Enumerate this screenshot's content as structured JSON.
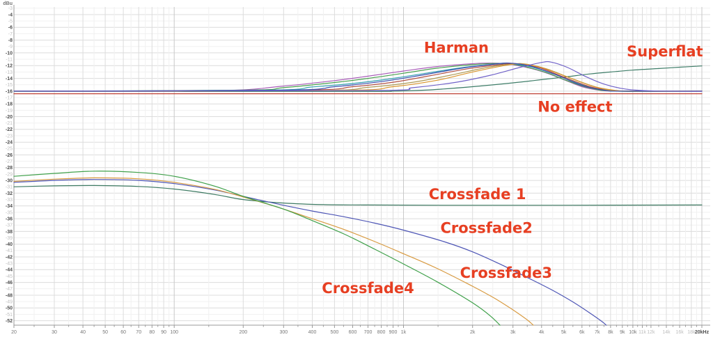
{
  "chart_data": {
    "type": "line",
    "title": "",
    "x_axis": {
      "scale": "log",
      "unit": "Hz",
      "min": 20,
      "max": 20000,
      "tick_labels": [
        {
          "f": 20,
          "text": "20"
        },
        {
          "f": 30,
          "text": "30"
        },
        {
          "f": 40,
          "text": "40"
        },
        {
          "f": 50,
          "text": "50"
        },
        {
          "f": 60,
          "text": "60"
        },
        {
          "f": 70,
          "text": "70"
        },
        {
          "f": 80,
          "text": "80"
        },
        {
          "f": 90,
          "text": "90"
        },
        {
          "f": 100,
          "text": "100"
        },
        {
          "f": 200,
          "text": "200"
        },
        {
          "f": 300,
          "text": "300"
        },
        {
          "f": 400,
          "text": "400"
        },
        {
          "f": 500,
          "text": "500"
        },
        {
          "f": 600,
          "text": "600"
        },
        {
          "f": 700,
          "text": "700"
        },
        {
          "f": 800,
          "text": "800"
        },
        {
          "f": 900,
          "text": "900"
        },
        {
          "f": 1000,
          "text": "1k"
        },
        {
          "f": 2000,
          "text": "2k"
        },
        {
          "f": 3000,
          "text": "3k"
        },
        {
          "f": 4000,
          "text": "4k"
        },
        {
          "f": 5000,
          "text": "5k"
        },
        {
          "f": 6000,
          "text": "6k"
        },
        {
          "f": 7000,
          "text": "7k"
        },
        {
          "f": 8000,
          "text": "8k"
        },
        {
          "f": 9000,
          "text": "9k"
        },
        {
          "f": 10000,
          "text": "10k"
        },
        {
          "f": 11000,
          "text": "11k",
          "muted": true
        },
        {
          "f": 12000,
          "text": "12k",
          "muted": true
        },
        {
          "f": 14000,
          "text": "14k",
          "muted": true
        },
        {
          "f": 16000,
          "text": "16k",
          "muted": true
        },
        {
          "f": 18000,
          "text": "18k",
          "muted": true
        },
        {
          "f": 20000,
          "text": "20kHz",
          "emph": true
        }
      ],
      "grid_emphasis": [
        100,
        1000,
        10000,
        20000
      ]
    },
    "y_axis": {
      "unit_label": "dBu",
      "tick_from": -3,
      "tick_to": -52,
      "tick_step": 1
    },
    "series": [
      {
        "name": "superflat",
        "group": "Superflat",
        "color": "#3e7d68",
        "points": [
          [
            20,
            -16.05
          ],
          [
            600,
            -16.05
          ],
          [
            900,
            -16.0
          ],
          [
            1300,
            -15.8
          ],
          [
            2000,
            -15.3
          ],
          [
            3000,
            -14.7
          ],
          [
            4000,
            -14.2
          ],
          [
            5000,
            -13.8
          ],
          [
            6500,
            -13.3
          ],
          [
            8000,
            -13.0
          ],
          [
            10000,
            -12.7
          ],
          [
            13000,
            -12.45
          ],
          [
            16000,
            -12.25
          ],
          [
            20000,
            -12.05
          ]
        ]
      },
      {
        "name": "harman-violet",
        "group": "Harman",
        "color": "#a85cb8",
        "points": [
          [
            20,
            -16
          ],
          [
            150,
            -15.95
          ],
          [
            300,
            -15.2
          ],
          [
            500,
            -14.35
          ],
          [
            700,
            -13.65
          ],
          [
            1000,
            -12.85
          ],
          [
            1400,
            -12.15
          ],
          [
            2000,
            -11.7
          ],
          [
            2400,
            -11.6
          ],
          [
            3000,
            -11.85
          ],
          [
            4000,
            -12.9
          ],
          [
            5000,
            -14.2
          ],
          [
            6000,
            -15.3
          ],
          [
            7000,
            -15.8
          ],
          [
            8500,
            -16
          ],
          [
            20000,
            -16
          ]
        ]
      },
      {
        "name": "harman-green",
        "group": "Harman",
        "color": "#49a04f",
        "points": [
          [
            20,
            -16
          ],
          [
            200,
            -15.85
          ],
          [
            300,
            -15.45
          ],
          [
            500,
            -14.65
          ],
          [
            700,
            -14.0
          ],
          [
            1000,
            -13.2
          ],
          [
            1400,
            -12.4
          ],
          [
            2000,
            -11.85
          ],
          [
            2600,
            -11.65
          ],
          [
            3200,
            -11.95
          ],
          [
            4200,
            -13.1
          ],
          [
            5200,
            -14.4
          ],
          [
            6500,
            -15.5
          ],
          [
            8500,
            -16
          ],
          [
            20000,
            -16
          ]
        ]
      },
      {
        "name": "harman-teal",
        "group": "Harman",
        "color": "#35a0b2",
        "points": [
          [
            20,
            -16
          ],
          [
            250,
            -15.85
          ],
          [
            400,
            -15.35
          ],
          [
            600,
            -14.8
          ],
          [
            900,
            -14.0
          ],
          [
            1300,
            -13.1
          ],
          [
            1900,
            -12.2
          ],
          [
            2700,
            -11.7
          ],
          [
            3500,
            -12.1
          ],
          [
            4500,
            -13.3
          ],
          [
            6000,
            -15.0
          ],
          [
            7500,
            -15.8
          ],
          [
            9000,
            -16
          ],
          [
            20000,
            -16
          ]
        ]
      },
      {
        "name": "harman-red",
        "group": "Harman",
        "color": "#b05045",
        "points": [
          [
            20,
            -16
          ],
          [
            350,
            -15.85
          ],
          [
            600,
            -15.3
          ],
          [
            900,
            -14.6
          ],
          [
            1300,
            -13.6
          ],
          [
            1900,
            -12.5
          ],
          [
            2700,
            -11.8
          ],
          [
            3100,
            -11.7
          ],
          [
            3900,
            -12.3
          ],
          [
            5000,
            -13.8
          ],
          [
            6500,
            -15.3
          ],
          [
            8000,
            -15.9
          ],
          [
            9500,
            -16
          ],
          [
            20000,
            -16
          ]
        ]
      },
      {
        "name": "harman-olive",
        "group": "Harman",
        "color": "#ad9a55",
        "points": [
          [
            20,
            -16
          ],
          [
            400,
            -15.9
          ],
          [
            700,
            -15.4
          ],
          [
            1100,
            -14.6
          ],
          [
            1600,
            -13.5
          ],
          [
            2300,
            -12.3
          ],
          [
            3000,
            -11.75
          ],
          [
            3400,
            -11.75
          ],
          [
            4200,
            -12.5
          ],
          [
            5400,
            -14.0
          ],
          [
            7000,
            -15.4
          ],
          [
            9000,
            -16
          ],
          [
            20000,
            -16
          ]
        ]
      },
      {
        "name": "harman-orange",
        "group": "Harman",
        "color": "#d9952f",
        "points": [
          [
            20,
            -16
          ],
          [
            500,
            -15.9
          ],
          [
            900,
            -15.3
          ],
          [
            1400,
            -14.3
          ],
          [
            2000,
            -13.0
          ],
          [
            2800,
            -11.95
          ],
          [
            3300,
            -11.75
          ],
          [
            4000,
            -12.3
          ],
          [
            5200,
            -13.8
          ],
          [
            6800,
            -15.3
          ],
          [
            8500,
            -15.9
          ],
          [
            10000,
            -16
          ],
          [
            20000,
            -16
          ]
        ]
      },
      {
        "name": "harman-blue",
        "group": "Harman",
        "color": "#3c4fb0",
        "points": [
          [
            20,
            -16
          ],
          [
            300,
            -15.85
          ],
          [
            500,
            -15.3
          ],
          [
            800,
            -14.5
          ],
          [
            1200,
            -13.5
          ],
          [
            1800,
            -12.4
          ],
          [
            2500,
            -11.75
          ],
          [
            2900,
            -11.6
          ],
          [
            3600,
            -12.1
          ],
          [
            4600,
            -13.4
          ],
          [
            6000,
            -15.1
          ],
          [
            7500,
            -15.85
          ],
          [
            9000,
            -16
          ],
          [
            20000,
            -16
          ]
        ]
      },
      {
        "name": "harman-slate",
        "group": "Harman",
        "color": "#7062c8",
        "points": [
          [
            20,
            -16
          ],
          [
            700,
            -15.9
          ],
          [
            1100,
            -15.45
          ],
          [
            1700,
            -14.6
          ],
          [
            2400,
            -13.5
          ],
          [
            3200,
            -12.3
          ],
          [
            4000,
            -11.5
          ],
          [
            4400,
            -11.45
          ],
          [
            5200,
            -12.3
          ],
          [
            6300,
            -13.8
          ],
          [
            7500,
            -14.9
          ],
          [
            9000,
            -15.6
          ],
          [
            11000,
            -15.9
          ],
          [
            14000,
            -16
          ],
          [
            20000,
            -16.05
          ]
        ]
      },
      {
        "name": "no-effect",
        "group": "No effect",
        "color": "#bf4136",
        "points": [
          [
            20,
            -16.4
          ],
          [
            20000,
            -16.4
          ]
        ]
      },
      {
        "name": "crossfade-1",
        "group": "Crossfade 1",
        "color": "#3d7a62",
        "points": [
          [
            20,
            -31.0
          ],
          [
            30,
            -30.85
          ],
          [
            45,
            -30.8
          ],
          [
            70,
            -30.95
          ],
          [
            100,
            -31.35
          ],
          [
            150,
            -32.2
          ],
          [
            200,
            -33.0
          ],
          [
            300,
            -33.55
          ],
          [
            450,
            -33.8
          ],
          [
            700,
            -33.85
          ],
          [
            1500,
            -33.9
          ],
          [
            5000,
            -33.9
          ],
          [
            20000,
            -33.85
          ]
        ]
      },
      {
        "name": "crossfade-2",
        "group": "Crossfade2",
        "color": "#4d55b5",
        "points": [
          [
            20,
            -30.3
          ],
          [
            30,
            -30.0
          ],
          [
            45,
            -29.85
          ],
          [
            70,
            -30.0
          ],
          [
            100,
            -30.5
          ],
          [
            150,
            -31.5
          ],
          [
            200,
            -32.5
          ],
          [
            300,
            -33.9
          ],
          [
            400,
            -34.8
          ],
          [
            550,
            -35.7
          ],
          [
            750,
            -36.7
          ],
          [
            1000,
            -37.8
          ],
          [
            1500,
            -39.6
          ],
          [
            2000,
            -41.2
          ],
          [
            2700,
            -43.3
          ],
          [
            3500,
            -45.3
          ],
          [
            4500,
            -47.3
          ],
          [
            5500,
            -49.1
          ],
          [
            6500,
            -50.8
          ],
          [
            7500,
            -52.4
          ],
          [
            7900,
            -53.3
          ]
        ]
      },
      {
        "name": "crossfade-3",
        "group": "Crossfade3",
        "color": "#d89a40",
        "points": [
          [
            20,
            -30.15
          ],
          [
            30,
            -29.8
          ],
          [
            45,
            -29.6
          ],
          [
            70,
            -29.75
          ],
          [
            100,
            -30.3
          ],
          [
            150,
            -31.4
          ],
          [
            200,
            -32.6
          ],
          [
            300,
            -34.5
          ],
          [
            400,
            -36.0
          ],
          [
            550,
            -37.7
          ],
          [
            750,
            -39.6
          ],
          [
            1000,
            -41.5
          ],
          [
            1400,
            -43.8
          ],
          [
            2000,
            -46.6
          ],
          [
            2500,
            -48.5
          ],
          [
            3000,
            -50.3
          ],
          [
            3500,
            -52.0
          ],
          [
            3850,
            -53.4
          ]
        ]
      },
      {
        "name": "crossfade-4",
        "group": "Crossfade4",
        "color": "#3fa04a",
        "points": [
          [
            20,
            -29.35
          ],
          [
            30,
            -28.9
          ],
          [
            45,
            -28.55
          ],
          [
            70,
            -28.75
          ],
          [
            100,
            -29.35
          ],
          [
            150,
            -30.9
          ],
          [
            200,
            -32.5
          ],
          [
            300,
            -34.5
          ],
          [
            400,
            -36.3
          ],
          [
            550,
            -38.4
          ],
          [
            750,
            -40.8
          ],
          [
            1000,
            -43.1
          ],
          [
            1400,
            -45.9
          ],
          [
            2000,
            -49.2
          ],
          [
            2400,
            -51.3
          ],
          [
            2750,
            -53.4
          ]
        ]
      }
    ],
    "annotations": [
      {
        "id": "harman",
        "text": "Harman",
        "f": 1700,
        "db": -9.3
      },
      {
        "id": "superflat",
        "text": "Superflat",
        "f": 13800,
        "db": -9.9
      },
      {
        "id": "no-effect",
        "text": "No effect",
        "f": 5600,
        "db": -18.6
      },
      {
        "id": "crossfade-1",
        "text": "Crossfade 1",
        "f": 2100,
        "db": -32.3
      },
      {
        "id": "crossfade-2",
        "text": "Crossfade2",
        "f": 2300,
        "db": -37.6
      },
      {
        "id": "crossfade-3",
        "text": "Crossfade3",
        "f": 2800,
        "db": -44.6
      },
      {
        "id": "crossfade-4",
        "text": "Crossfade4",
        "f": 700,
        "db": -47.0
      }
    ],
    "style": {
      "annotation_color": "#e73f22",
      "grid_major": "#dcdcdc",
      "grid_minor": "#f1f1f1",
      "grid_emph": "#c9c9c9",
      "axis_color": "#9a9a9a",
      "label_dark": "#767676",
      "label_light": "#bdbdbd",
      "label_emph": "#4d4d4d",
      "background": "#ffffff"
    },
    "layout_hints": {
      "grid": true,
      "legend": "inline-annotations",
      "ylim": [
        -52.7,
        -2.8
      ]
    }
  }
}
